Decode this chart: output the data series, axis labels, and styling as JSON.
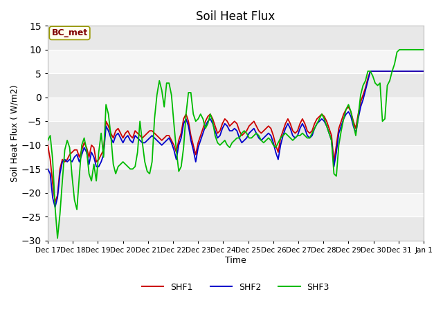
{
  "title": "Soil Heat Flux",
  "xlabel": "Time",
  "ylabel": "Soil Heat Flux ( W/m2)",
  "ylim": [
    -30,
    15
  ],
  "annotation_label": "BC_met",
  "annotation_color": "#800000",
  "annotation_bg": "#ffffee",
  "annotation_edge": "#999900",
  "x_tick_labels": [
    "Dec 17",
    "Dec 18",
    "Dec 19",
    "Dec 20",
    "Dec 21",
    "Dec 22",
    "Dec 23",
    "Dec 24",
    "Dec 25",
    "Dec 26",
    "Dec 27",
    "Dec 28",
    "Dec 29",
    "Dec 30",
    "Dec 31",
    "Jan 1"
  ],
  "shf1_color": "#cc0000",
  "shf2_color": "#0000cc",
  "shf3_color": "#00bb00",
  "shf1": [
    -10.0,
    -13.0,
    -18.0,
    -22.0,
    -20.5,
    -15.0,
    -13.0,
    -13.5,
    -13.0,
    -12.0,
    -11.5,
    -11.0,
    -11.0,
    -12.5,
    -11.0,
    -9.5,
    -10.5,
    -12.5,
    -10.0,
    -10.5,
    -13.5,
    -13.0,
    -12.0,
    -11.0,
    -5.0,
    -6.0,
    -7.5,
    -8.5,
    -7.0,
    -6.5,
    -7.5,
    -8.5,
    -7.5,
    -7.0,
    -8.0,
    -8.5,
    -7.0,
    -7.5,
    -8.0,
    -8.5,
    -8.0,
    -7.5,
    -7.0,
    -7.0,
    -7.5,
    -8.0,
    -8.5,
    -9.0,
    -8.5,
    -8.0,
    -8.0,
    -9.0,
    -10.0,
    -11.5,
    -9.0,
    -7.5,
    -4.5,
    -3.5,
    -5.0,
    -8.0,
    -10.0,
    -12.0,
    -9.5,
    -8.0,
    -6.5,
    -5.0,
    -4.0,
    -3.5,
    -4.5,
    -6.0,
    -7.5,
    -7.0,
    -5.5,
    -4.5,
    -5.0,
    -6.0,
    -5.5,
    -5.0,
    -5.5,
    -7.0,
    -8.0,
    -7.5,
    -7.0,
    -6.0,
    -5.5,
    -5.0,
    -6.0,
    -7.0,
    -7.5,
    -7.0,
    -6.5,
    -6.0,
    -6.5,
    -8.0,
    -10.0,
    -11.5,
    -8.5,
    -7.0,
    -5.5,
    -4.5,
    -5.5,
    -7.0,
    -7.5,
    -7.0,
    -5.5,
    -4.5,
    -5.5,
    -7.0,
    -7.5,
    -7.0,
    -5.5,
    -4.5,
    -4.0,
    -3.5,
    -4.0,
    -5.0,
    -6.5,
    -8.0,
    -13.5,
    -10.0,
    -6.5,
    -5.0,
    -3.5,
    -2.5,
    -2.0,
    -3.0,
    -5.0,
    -6.5,
    -3.5,
    -1.0,
    0.5,
    2.0,
    4.0,
    5.5,
    5.5,
    5.5,
    5.5,
    5.5,
    5.5,
    5.5,
    5.5,
    5.5,
    5.5,
    5.5,
    5.5,
    5.5,
    5.5,
    5.5,
    5.5,
    5.5,
    5.5,
    5.5,
    5.5,
    5.5,
    5.5,
    5.5
  ],
  "shf2": [
    -15.0,
    -16.0,
    -21.0,
    -23.0,
    -21.0,
    -16.0,
    -13.5,
    -13.0,
    -13.5,
    -13.0,
    -13.5,
    -12.5,
    -12.0,
    -13.5,
    -12.0,
    -10.5,
    -11.5,
    -14.0,
    -11.5,
    -12.5,
    -14.5,
    -14.5,
    -13.5,
    -12.0,
    -6.0,
    -7.0,
    -8.5,
    -9.5,
    -8.0,
    -7.5,
    -8.5,
    -9.5,
    -8.5,
    -8.0,
    -9.0,
    -9.5,
    -8.0,
    -8.5,
    -9.0,
    -9.5,
    -9.5,
    -9.0,
    -8.5,
    -8.0,
    -8.5,
    -9.0,
    -9.5,
    -10.0,
    -9.5,
    -9.0,
    -8.5,
    -9.5,
    -11.0,
    -13.0,
    -10.0,
    -8.5,
    -5.5,
    -4.5,
    -6.0,
    -9.0,
    -11.0,
    -13.5,
    -10.5,
    -9.0,
    -7.5,
    -6.0,
    -5.0,
    -4.5,
    -5.5,
    -7.0,
    -8.5,
    -8.0,
    -6.5,
    -5.5,
    -6.0,
    -7.0,
    -7.0,
    -6.5,
    -7.0,
    -8.5,
    -9.5,
    -9.0,
    -8.5,
    -7.5,
    -7.0,
    -6.5,
    -7.5,
    -8.5,
    -9.0,
    -8.5,
    -8.0,
    -7.5,
    -8.0,
    -9.5,
    -11.5,
    -13.0,
    -10.0,
    -8.0,
    -6.5,
    -5.5,
    -6.5,
    -8.0,
    -8.5,
    -8.0,
    -6.5,
    -5.5,
    -6.5,
    -8.0,
    -8.5,
    -8.0,
    -6.5,
    -5.5,
    -5.0,
    -4.5,
    -5.0,
    -6.0,
    -7.5,
    -9.0,
    -14.5,
    -11.5,
    -7.5,
    -6.0,
    -4.5,
    -3.5,
    -3.0,
    -4.0,
    -6.0,
    -7.5,
    -4.5,
    -2.0,
    -0.5,
    1.5,
    3.5,
    5.5,
    5.5,
    5.5,
    5.5,
    5.5,
    5.5,
    5.5,
    5.5,
    5.5,
    5.5,
    5.5,
    5.5,
    5.5,
    5.5,
    5.5,
    5.5,
    5.5,
    5.5,
    5.5,
    5.5,
    5.5,
    5.5,
    5.5
  ],
  "shf3": [
    -9.0,
    -8.0,
    -13.0,
    -23.0,
    -29.5,
    -24.5,
    -17.5,
    -11.0,
    -9.0,
    -10.5,
    -16.5,
    -21.5,
    -23.5,
    -16.5,
    -10.0,
    -8.5,
    -11.0,
    -16.0,
    -17.5,
    -14.0,
    -17.5,
    -11.5,
    -7.5,
    -12.5,
    -1.5,
    -3.5,
    -8.0,
    -14.0,
    -16.0,
    -14.5,
    -14.0,
    -13.5,
    -14.0,
    -14.5,
    -15.0,
    -15.0,
    -14.5,
    -11.5,
    -5.0,
    -9.5,
    -13.5,
    -15.5,
    -16.0,
    -13.5,
    -4.5,
    0.5,
    3.5,
    1.5,
    -2.0,
    3.0,
    3.0,
    0.5,
    -5.5,
    -11.0,
    -15.5,
    -14.5,
    -10.5,
    -3.5,
    1.0,
    1.0,
    -3.5,
    -5.0,
    -4.5,
    -3.5,
    -4.5,
    -6.5,
    -5.5,
    -3.5,
    -5.0,
    -8.0,
    -9.5,
    -10.0,
    -9.5,
    -9.0,
    -10.0,
    -10.5,
    -9.5,
    -9.0,
    -8.5,
    -8.5,
    -7.5,
    -7.0,
    -7.5,
    -8.5,
    -8.5,
    -8.0,
    -7.5,
    -8.0,
    -9.0,
    -9.5,
    -9.0,
    -8.5,
    -9.0,
    -10.0,
    -10.5,
    -9.5,
    -8.5,
    -8.0,
    -7.5,
    -8.0,
    -8.5,
    -9.0,
    -8.5,
    -8.0,
    -8.0,
    -7.5,
    -8.0,
    -8.5,
    -8.5,
    -7.5,
    -6.5,
    -5.5,
    -4.5,
    -3.5,
    -4.5,
    -6.0,
    -7.5,
    -9.0,
    -16.0,
    -16.5,
    -10.0,
    -7.0,
    -4.5,
    -2.5,
    -1.5,
    -3.0,
    -5.5,
    -8.0,
    -4.0,
    0.5,
    2.5,
    3.5,
    5.5,
    5.5,
    4.5,
    3.0,
    2.5,
    3.0,
    -5.0,
    -4.5,
    2.5,
    3.5,
    5.5,
    7.0,
    9.5,
    10.0,
    10.0,
    10.0,
    10.0,
    10.0,
    10.0,
    10.0,
    10.0,
    10.0,
    10.0,
    10.0
  ]
}
